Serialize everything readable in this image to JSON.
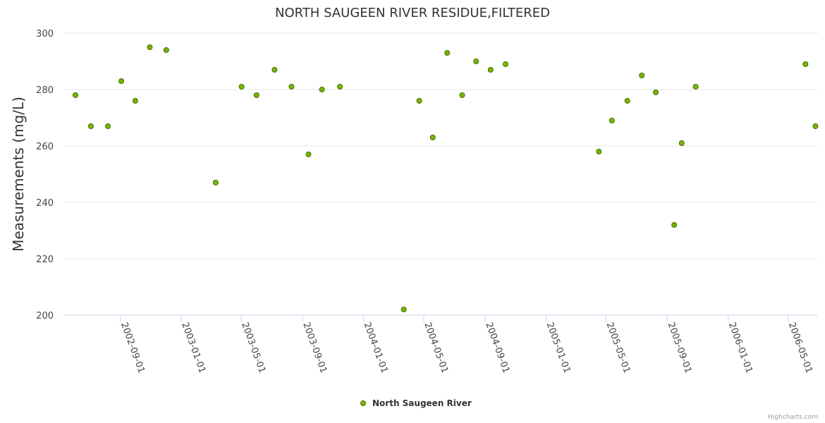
{
  "chart_data": {
    "type": "scatter",
    "title": "NORTH SAUGEEN RIVER RESIDUE,FILTERED",
    "xlabel": "",
    "ylabel": "Measurements (mg/L)",
    "ylim": [
      200,
      300
    ],
    "y_ticks": [
      200,
      220,
      240,
      260,
      280,
      300
    ],
    "xlim": [
      "2002-05-10",
      "2006-06-30"
    ],
    "x_ticks": [
      "2002-09-01",
      "2003-01-01",
      "2003-05-01",
      "2003-09-01",
      "2004-01-01",
      "2004-05-01",
      "2004-09-01",
      "2005-01-01",
      "2005-05-01",
      "2005-09-01",
      "2006-01-01",
      "2006-05-01"
    ],
    "grid": true,
    "legend_position": "bottom-center",
    "series": [
      {
        "name": "North Saugeen River",
        "color": "#7cb500",
        "points": [
          {
            "x": "2002-06-03",
            "y": 278
          },
          {
            "x": "2002-07-04",
            "y": 267
          },
          {
            "x": "2002-08-07",
            "y": 267
          },
          {
            "x": "2002-09-03",
            "y": 283
          },
          {
            "x": "2002-10-01",
            "y": 276
          },
          {
            "x": "2002-10-30",
            "y": 295
          },
          {
            "x": "2002-12-02",
            "y": 294
          },
          {
            "x": "2003-03-11",
            "y": 247
          },
          {
            "x": "2003-05-02",
            "y": 281
          },
          {
            "x": "2003-06-01",
            "y": 278
          },
          {
            "x": "2003-07-07",
            "y": 287
          },
          {
            "x": "2003-08-10",
            "y": 281
          },
          {
            "x": "2003-09-13",
            "y": 257
          },
          {
            "x": "2003-10-10",
            "y": 280
          },
          {
            "x": "2003-11-15",
            "y": 281
          },
          {
            "x": "2004-03-22",
            "y": 202
          },
          {
            "x": "2004-04-22",
            "y": 276
          },
          {
            "x": "2004-05-19",
            "y": 263
          },
          {
            "x": "2004-06-17",
            "y": 293
          },
          {
            "x": "2004-07-17",
            "y": 278
          },
          {
            "x": "2004-08-14",
            "y": 290
          },
          {
            "x": "2004-09-12",
            "y": 287
          },
          {
            "x": "2004-10-12",
            "y": 289
          },
          {
            "x": "2005-04-17",
            "y": 258
          },
          {
            "x": "2005-05-13",
            "y": 269
          },
          {
            "x": "2005-06-13",
            "y": 276
          },
          {
            "x": "2005-07-12",
            "y": 285
          },
          {
            "x": "2005-08-09",
            "y": 279
          },
          {
            "x": "2005-09-15",
            "y": 232
          },
          {
            "x": "2005-09-30",
            "y": 261
          },
          {
            "x": "2005-10-28",
            "y": 281
          },
          {
            "x": "2006-06-05",
            "y": 289
          },
          {
            "x": "2006-06-25",
            "y": 267
          }
        ]
      }
    ]
  },
  "credits": "Highcharts.com"
}
